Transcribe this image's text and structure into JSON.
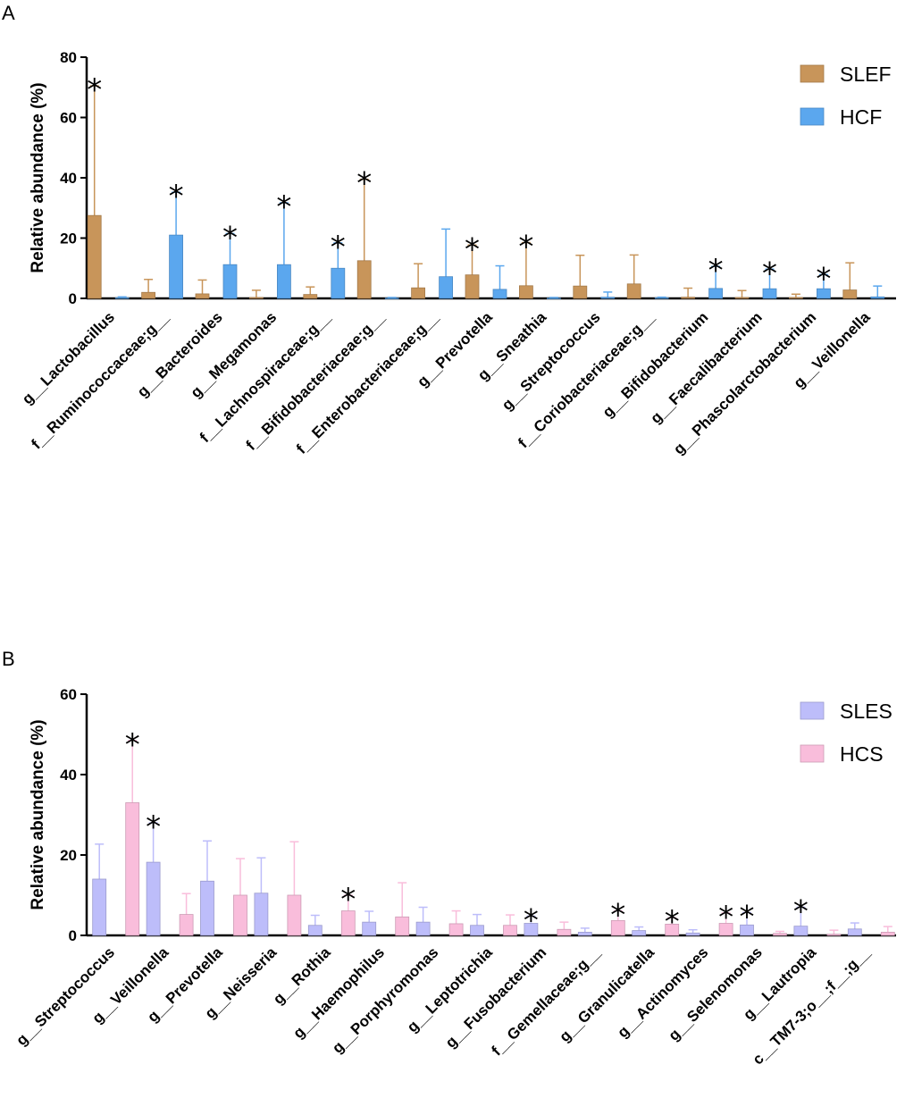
{
  "chart_data": [
    {
      "panel": "A",
      "type": "bar",
      "ylabel": "Relative abundance (%)",
      "ylim": [
        0,
        80
      ],
      "yticks": [
        0,
        20,
        40,
        60,
        80
      ],
      "legend_position": "top-right",
      "categories": [
        "g__Lactobacillus",
        "f__Ruminococcaceae;g__",
        "g__Bacteroides",
        "g__Megamonas",
        "f__Lachnospiraceae;g__",
        "f__Bifidobacteriaceae;g__",
        "f__Enterobacteriaceae;g__",
        "g__Prevotella",
        "g__Sneathia",
        "g__Streptococcus",
        "f__Coriobacteriaceae;g__",
        "g__Bifidobacterium",
        "g__Faecalibacterium",
        "g__Phascolarctobacterium",
        "g__Veillonella"
      ],
      "series": [
        {
          "name": "SLEF",
          "color": "#C8955A",
          "values": [
            27.5,
            2.0,
            1.5,
            0.3,
            1.3,
            12.5,
            3.5,
            7.8,
            4.2,
            4.1,
            4.8,
            0.4,
            0.3,
            0.3,
            2.8
          ],
          "errors": [
            70.5,
            6.3,
            6.1,
            2.7,
            3.8,
            39.5,
            11.5,
            17.7,
            18.5,
            14.3,
            14.4,
            3.4,
            2.6,
            1.4,
            11.8
          ]
        },
        {
          "name": "HCF",
          "color": "#5BA7EE",
          "values": [
            0.2,
            21.0,
            11.2,
            11.2,
            10.0,
            0.1,
            7.2,
            3.0,
            0.1,
            0.4,
            0.2,
            3.3,
            3.2,
            3.2,
            0.5
          ],
          "errors": [
            0.5,
            35.2,
            21.5,
            31.7,
            18.4,
            0.3,
            23.0,
            10.8,
            0.3,
            2.1,
            0.4,
            10.6,
            9.7,
            7.9,
            4.1
          ]
        }
      ],
      "significance": [
        {
          "category": "g__Lactobacillus",
          "series": "SLEF",
          "mark": "*"
        },
        {
          "category": "f__Ruminococcaceae;g__",
          "series": "HCF",
          "mark": "*"
        },
        {
          "category": "g__Bacteroides",
          "series": "HCF",
          "mark": "*"
        },
        {
          "category": "g__Megamonas",
          "series": "HCF",
          "mark": "*"
        },
        {
          "category": "f__Lachnospiraceae;g__",
          "series": "HCF",
          "mark": "*"
        },
        {
          "category": "f__Bifidobacteriaceae;g__",
          "series": "SLEF",
          "mark": "*"
        },
        {
          "category": "g__Prevotella",
          "series": "SLEF",
          "mark": "*"
        },
        {
          "category": "g__Sneathia",
          "series": "SLEF",
          "mark": "*"
        },
        {
          "category": "g__Bifidobacterium",
          "series": "HCF",
          "mark": "*"
        },
        {
          "category": "g__Faecalibacterium",
          "series": "HCF",
          "mark": "*"
        },
        {
          "category": "g__Phascolarctobacterium",
          "series": "HCF",
          "mark": "*"
        }
      ]
    },
    {
      "panel": "B",
      "type": "bar",
      "ylabel": "Relative abundance (%)",
      "ylim": [
        0,
        60
      ],
      "yticks": [
        0,
        20,
        40,
        60
      ],
      "legend_position": "top-right",
      "categories": [
        "g__Streptococcus",
        "g__Veillonella",
        "g__Prevotella",
        "g__Neisseria",
        "g__Rothia",
        "g__Haemophilus",
        "g__Porphyromonas",
        "g__Leptotrichia",
        "g__Fusobacterium",
        "f__Gemellaceae;g__",
        "g__Granulicatella",
        "g__Actinomyces",
        "g__Selenomonas",
        "g__Lautropia",
        "c__TM7-3;o__;f__;g__"
      ],
      "series": [
        {
          "name": "SLES",
          "color": "#BDBDFA",
          "values": [
            14.0,
            18.2,
            13.5,
            10.5,
            2.5,
            3.3,
            3.3,
            2.5,
            3.0,
            0.8,
            1.2,
            0.6,
            2.6,
            2.3,
            1.6
          ],
          "errors": [
            22.7,
            28.0,
            23.5,
            19.3,
            5.0,
            6.0,
            7.0,
            5.2,
            4.8,
            1.8,
            2.1,
            1.4,
            5.7,
            7.0,
            3.1
          ]
        },
        {
          "name": "HCS",
          "color": "#F9BDDB",
          "values": [
            33.0,
            5.2,
            10.0,
            10.0,
            6.1,
            4.6,
            2.9,
            2.5,
            1.5,
            3.7,
            2.8,
            3.0,
            0.5,
            0.3,
            0.8
          ],
          "errors": [
            48.5,
            10.4,
            19.1,
            23.3,
            10.0,
            13.1,
            6.1,
            5.1,
            3.3,
            6.1,
            4.4,
            5.6,
            1.0,
            1.3,
            2.2
          ]
        }
      ],
      "significance": [
        {
          "category": "g__Streptococcus",
          "series": "HCS",
          "mark": "*"
        },
        {
          "category": "g__Veillonella",
          "series": "SLES",
          "mark": "*"
        },
        {
          "category": "g__Rothia",
          "series": "HCS",
          "mark": "*"
        },
        {
          "category": "g__Fusobacterium",
          "series": "SLES",
          "mark": "*"
        },
        {
          "category": "f__Gemellaceae;g__",
          "series": "HCS",
          "mark": "*"
        },
        {
          "category": "g__Granulicatella",
          "series": "HCS",
          "mark": "*"
        },
        {
          "category": "g__Actinomyces",
          "series": "HCS",
          "mark": "*"
        },
        {
          "category": "g__Selenomonas",
          "series": "SLES",
          "mark": "*"
        },
        {
          "category": "g__Lautropia",
          "series": "SLES",
          "mark": "*"
        }
      ]
    }
  ]
}
